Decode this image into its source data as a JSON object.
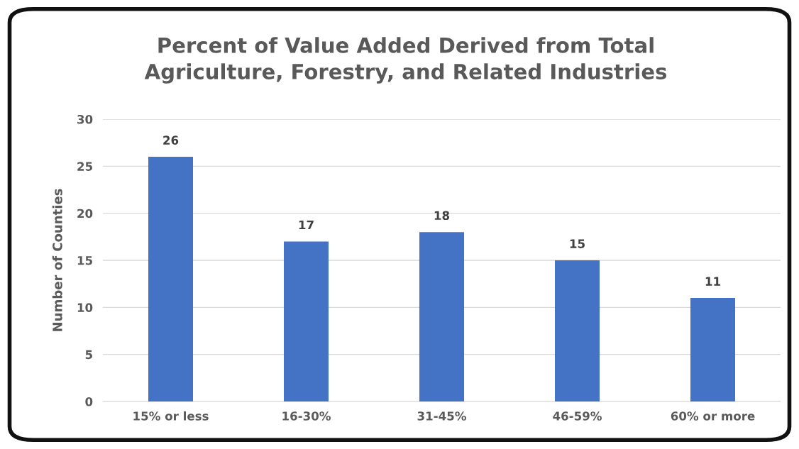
{
  "chart_data": {
    "type": "bar",
    "title": "Percent of Value Added Derived from Total\nAgriculture, Forestry, and Related Industries",
    "ylabel": "Number of Counties",
    "categories": [
      "15% or less",
      "16-30%",
      "31-45%",
      "46-59%",
      "60% or more"
    ],
    "values": [
      26,
      17,
      18,
      15,
      11
    ],
    "color": "#4472c4",
    "ylim": [
      0,
      30
    ],
    "yticks": [
      0,
      5,
      10,
      15,
      20,
      25,
      30
    ],
    "grid": "y",
    "data_labels": true
  }
}
